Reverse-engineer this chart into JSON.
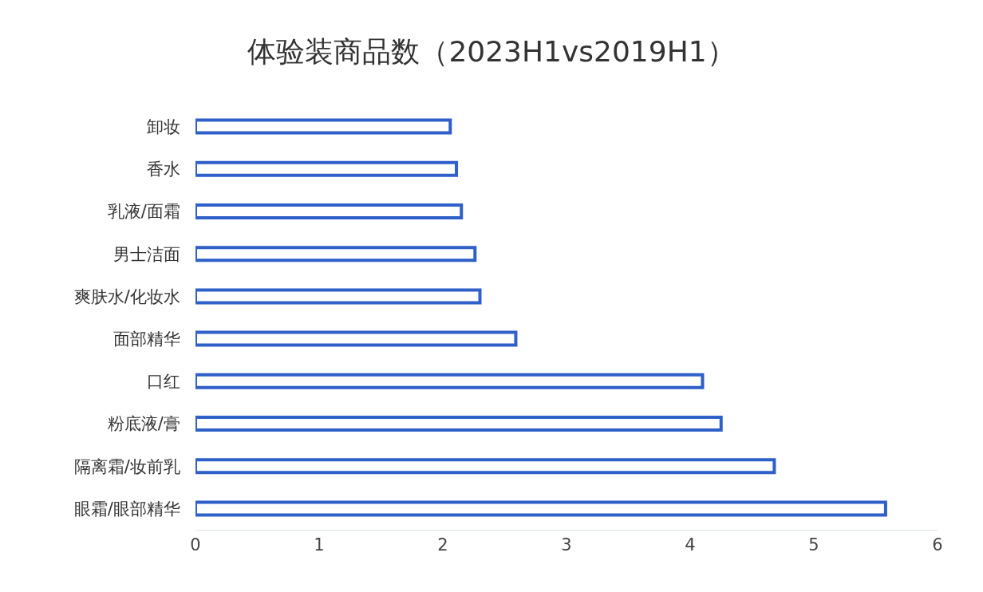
{
  "chart_data": {
    "type": "bar",
    "orientation": "horizontal",
    "title": "体验装商品数（2023H1vs2019H1）",
    "categories": [
      "卸妆",
      "香水",
      "乳液/面霜",
      "男士洁面",
      "爽肤水/化妆水",
      "面部精华",
      "口红",
      "粉底液/膏",
      "隔离霜/妆前乳",
      "眼霜/眼部精华"
    ],
    "values": [
      2.06,
      2.11,
      2.15,
      2.26,
      2.3,
      2.59,
      4.1,
      4.25,
      4.68,
      5.58
    ],
    "color": "#2f5fc8",
    "xlim": [
      0,
      6
    ],
    "xticks": [
      0,
      1,
      2,
      3,
      4,
      5,
      6
    ],
    "grid": false
  }
}
